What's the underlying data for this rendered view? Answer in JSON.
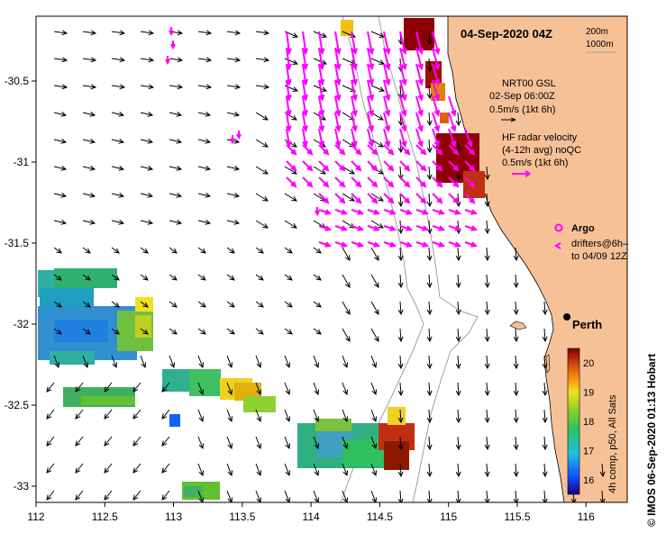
{
  "map": {
    "date_title": "04-Sep-2020 04Z",
    "x_axis": {
      "range": [
        112,
        116.3
      ],
      "ticks": [
        "112",
        "112.5",
        "113",
        "113.5",
        "114",
        "114.5",
        "115",
        "115.5",
        "116"
      ]
    },
    "y_axis": {
      "range": [
        -33.1,
        -30.1
      ],
      "ticks": [
        "-30.5",
        "-31",
        "-31.5",
        "-32",
        "-32.5",
        "-33"
      ]
    },
    "isobath_legend": [
      "200m",
      "1000m"
    ],
    "legend_gsl": {
      "title": "NRT00 GSL",
      "time": "02-Sep 06:00Z",
      "scale": "0.5m/s (1kt 6h)"
    },
    "legend_hf": {
      "title": "HF radar velocity",
      "desc": "(4-12h avg) noQC",
      "scale": "0.5m/s (1kt 6h)"
    },
    "legend_argo": "Argo",
    "legend_drifters_1": "drifters@6h–",
    "legend_drifters_2": "to 04/09 12Z",
    "city": "Perth",
    "colorbar": {
      "ticks": [
        "16",
        "17",
        "18",
        "19",
        "20"
      ],
      "range": [
        15.5,
        20.5
      ],
      "caption": "4h comp, p50, All Sats"
    },
    "credit": "© IMOS 06-Sep-2020 01:13 Hobart",
    "colors": {
      "land": "#f7c197",
      "hf_vectors": "#ff00ff",
      "sst_warm": "#8b0000",
      "sst_cool": "#1040ff"
    }
  }
}
